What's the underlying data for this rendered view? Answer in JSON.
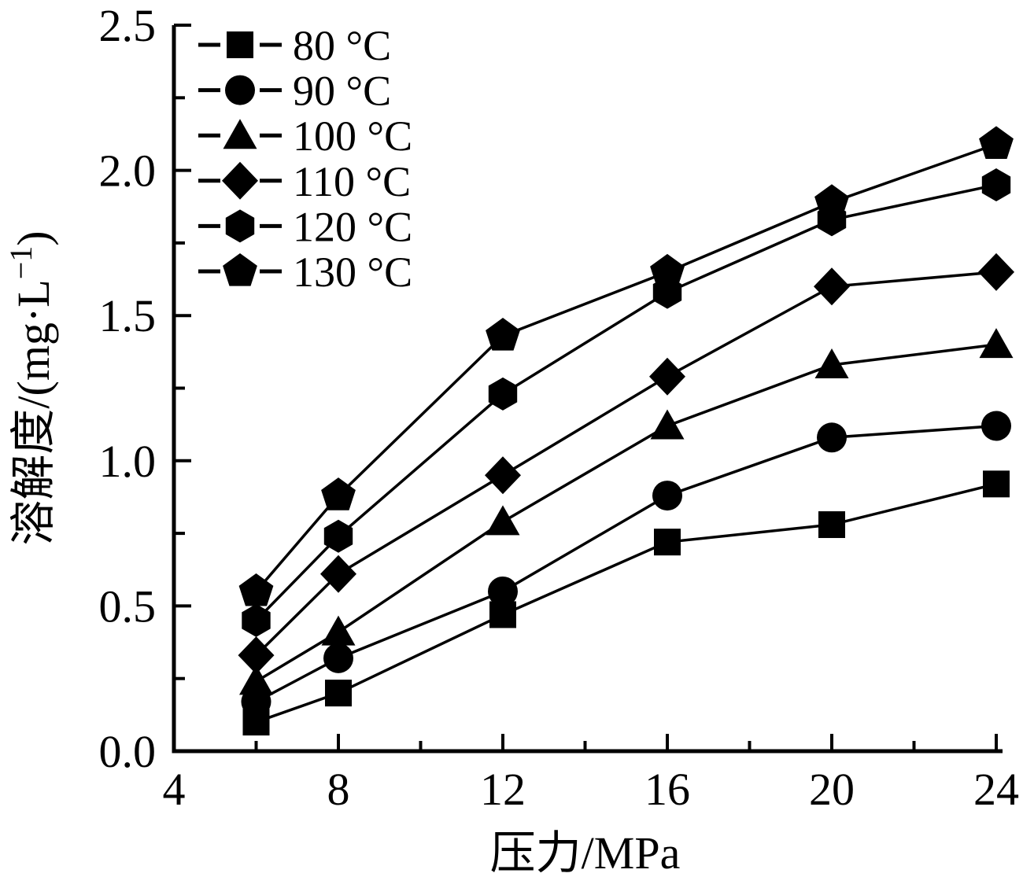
{
  "chart_data": {
    "type": "line",
    "title": "",
    "xlabel": "压力/MPa",
    "ylabel": "溶解度/(mg·L⁻¹)",
    "ylabel_parts": {
      "pre": "溶解度/(mg·L",
      "sup": "−1",
      "post": ")"
    },
    "x": [
      6,
      8,
      12,
      16,
      20,
      24
    ],
    "series": [
      {
        "name": "80 °C",
        "marker": "square",
        "values": [
          0.1,
          0.2,
          0.47,
          0.72,
          0.78,
          0.92
        ]
      },
      {
        "name": "90 °C",
        "marker": "circle",
        "values": [
          0.17,
          0.32,
          0.55,
          0.88,
          1.08,
          1.12
        ]
      },
      {
        "name": "100 °C",
        "marker": "triangle",
        "values": [
          0.24,
          0.41,
          0.79,
          1.12,
          1.33,
          1.4
        ]
      },
      {
        "name": "110 °C",
        "marker": "diamond",
        "values": [
          0.33,
          0.61,
          0.95,
          1.29,
          1.6,
          1.65
        ]
      },
      {
        "name": "120 °C",
        "marker": "hexagon",
        "values": [
          0.45,
          0.74,
          1.23,
          1.58,
          1.83,
          1.95
        ]
      },
      {
        "name": "130 °C",
        "marker": "pentagon",
        "values": [
          0.55,
          0.88,
          1.43,
          1.65,
          1.89,
          2.09
        ]
      }
    ],
    "xlim": [
      4,
      24
    ],
    "ylim": [
      0.0,
      2.5
    ],
    "x_major_ticks": [
      4,
      8,
      12,
      16,
      20,
      24
    ],
    "x_minor_ticks": [
      6,
      10,
      14,
      18,
      22
    ],
    "y_major_ticks": [
      {
        "value": 0.0,
        "label": "0.0"
      },
      {
        "value": 0.5,
        "label": "0.5"
      },
      {
        "value": 1.0,
        "label": "1.0"
      },
      {
        "value": 1.5,
        "label": "1.5"
      },
      {
        "value": 2.0,
        "label": "2.0"
      },
      {
        "value": 2.5,
        "label": "2.5"
      }
    ],
    "y_minor_ticks": [
      0.25,
      0.75,
      1.25,
      1.75,
      2.25
    ],
    "grid": false,
    "legend_position": "top-left",
    "line_style": "solid",
    "colors": {
      "foreground": "#000000",
      "background": "#ffffff"
    }
  }
}
